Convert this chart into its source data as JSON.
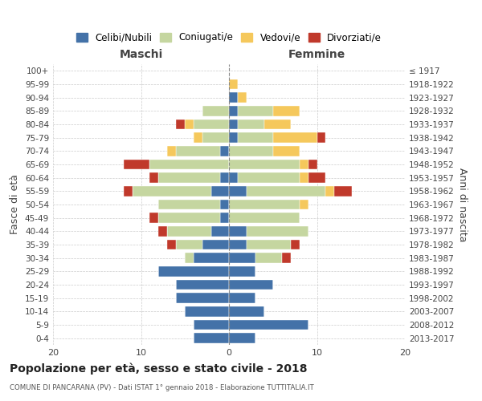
{
  "age_groups": [
    "100+",
    "95-99",
    "90-94",
    "85-89",
    "80-84",
    "75-79",
    "70-74",
    "65-69",
    "60-64",
    "55-59",
    "50-54",
    "45-49",
    "40-44",
    "35-39",
    "30-34",
    "25-29",
    "20-24",
    "15-19",
    "10-14",
    "5-9",
    "0-4"
  ],
  "birth_years": [
    "≤ 1917",
    "1918-1922",
    "1923-1927",
    "1928-1932",
    "1933-1937",
    "1938-1942",
    "1943-1947",
    "1948-1952",
    "1953-1957",
    "1958-1962",
    "1963-1967",
    "1968-1972",
    "1973-1977",
    "1978-1982",
    "1983-1987",
    "1988-1992",
    "1993-1997",
    "1998-2002",
    "2003-2007",
    "2008-2012",
    "2013-2017"
  ],
  "males": {
    "celibe": [
      0,
      0,
      0,
      0,
      0,
      0,
      1,
      0,
      1,
      2,
      1,
      1,
      2,
      3,
      4,
      8,
      6,
      6,
      5,
      4,
      4
    ],
    "coniugato": [
      0,
      0,
      0,
      3,
      4,
      3,
      5,
      9,
      7,
      9,
      7,
      7,
      5,
      3,
      1,
      0,
      0,
      0,
      0,
      0,
      0
    ],
    "vedovo": [
      0,
      0,
      0,
      0,
      1,
      1,
      1,
      0,
      0,
      0,
      0,
      0,
      0,
      0,
      0,
      0,
      0,
      0,
      0,
      0,
      0
    ],
    "divorziato": [
      0,
      0,
      0,
      0,
      1,
      0,
      0,
      3,
      1,
      1,
      0,
      1,
      1,
      1,
      0,
      0,
      0,
      0,
      0,
      0,
      0
    ]
  },
  "females": {
    "celibe": [
      0,
      0,
      1,
      1,
      1,
      1,
      0,
      0,
      1,
      2,
      0,
      0,
      2,
      2,
      3,
      3,
      5,
      3,
      4,
      9,
      3
    ],
    "coniugato": [
      0,
      0,
      0,
      4,
      3,
      4,
      5,
      8,
      7,
      9,
      8,
      8,
      7,
      5,
      3,
      0,
      0,
      0,
      0,
      0,
      0
    ],
    "vedovo": [
      0,
      1,
      1,
      3,
      3,
      5,
      3,
      1,
      1,
      1,
      1,
      0,
      0,
      0,
      0,
      0,
      0,
      0,
      0,
      0,
      0
    ],
    "divorziato": [
      0,
      0,
      0,
      0,
      0,
      1,
      0,
      1,
      2,
      2,
      0,
      0,
      0,
      1,
      1,
      0,
      0,
      0,
      0,
      0,
      0
    ]
  },
  "colors": {
    "celibe": "#4472A8",
    "coniugato": "#C5D6A0",
    "vedovo": "#F5C85C",
    "divorziato": "#C0392B"
  },
  "legend_labels": [
    "Celibi/Nubili",
    "Coniugati/e",
    "Vedovi/e",
    "Divorziati/e"
  ],
  "title": "Popolazione per età, sesso e stato civile - 2018",
  "subtitle": "COMUNE DI PANCARANA (PV) - Dati ISTAT 1° gennaio 2018 - Elaborazione TUTTITALIA.IT",
  "xlabel_left": "Maschi",
  "xlabel_right": "Femmine",
  "ylabel_left": "Fasce di età",
  "ylabel_right": "Anni di nascita",
  "xlim": 20,
  "background_color": "#ffffff"
}
